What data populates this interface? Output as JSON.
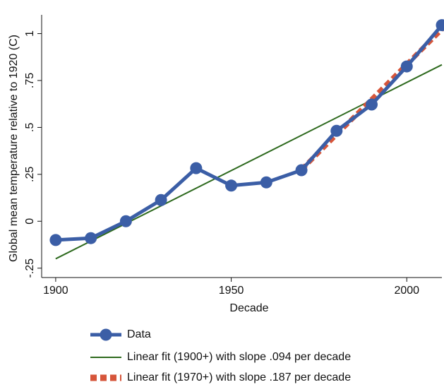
{
  "chart_data": {
    "type": "line",
    "x_label": "Decade",
    "y_label": "Global mean temperature relative to 1920 (C)",
    "xlim": [
      1896,
      2010
    ],
    "ylim": [
      -0.3,
      1.1
    ],
    "xticks": [
      1900,
      1950,
      2000
    ],
    "yticks": [
      {
        "value": -0.25,
        "label": "-.25"
      },
      0,
      {
        "value": 0.25,
        "label": ".25"
      },
      {
        "value": 0.5,
        "label": ".5"
      },
      {
        "value": 0.75,
        "label": ".75"
      },
      1
    ],
    "series": [
      {
        "name": "Data",
        "color": "#3b5ea6",
        "style": "line-markers",
        "x": [
          1900,
          1910,
          1920,
          1930,
          1940,
          1950,
          1960,
          1970,
          1980,
          1990,
          2000,
          2010
        ],
        "values": [
          -0.1,
          -0.09,
          0,
          0.113,
          0.283,
          0.19,
          0.207,
          0.272,
          0.482,
          0.622,
          0.825,
          1.045
        ]
      },
      {
        "name": "Linear fit (1900+) with slope .094 per decade",
        "color": "#2e6a1e",
        "style": "line",
        "x": [
          1900,
          2010
        ],
        "values": [
          -0.2,
          0.834
        ]
      },
      {
        "name": "Linear fit (1970+) with slope .187 per decade",
        "color": "#d6553a",
        "style": "dashed",
        "x": [
          1970,
          2010
        ],
        "values": [
          0.275,
          1.023
        ]
      }
    ]
  }
}
